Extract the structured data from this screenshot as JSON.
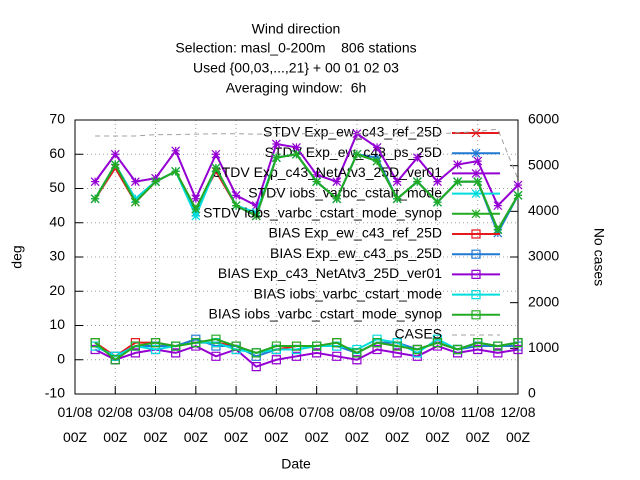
{
  "chart_data": {
    "type": "line",
    "title": "Wind direction",
    "subtitle": [
      "Selection: masl_0-200m    806 stations",
      "Used {00,03,...,21} + 00 01 02 03",
      "Averaging window:  6h"
    ],
    "xlabel": "Date",
    "ylabel": "deg",
    "y2label": "No cases",
    "xlim": [
      0,
      11
    ],
    "xticks": [
      {
        "value": 0,
        "label": "01/08 00Z"
      },
      {
        "value": 1,
        "label": "02/08 00Z"
      },
      {
        "value": 2,
        "label": "03/08 00Z"
      },
      {
        "value": 3,
        "label": "04/08 00Z"
      },
      {
        "value": 4,
        "label": "05/08 00Z"
      },
      {
        "value": 5,
        "label": "06/08 00Z"
      },
      {
        "value": 6,
        "label": "07/08 00Z"
      },
      {
        "value": 7,
        "label": "08/08 00Z"
      },
      {
        "value": 8,
        "label": "09/08 00Z"
      },
      {
        "value": 9,
        "label": "10/08 00Z"
      },
      {
        "value": 10,
        "label": "11/08 00Z"
      },
      {
        "value": 11,
        "label": "12/08 00Z"
      }
    ],
    "ylim": [
      -10,
      70
    ],
    "yticks": [
      -10,
      0,
      10,
      20,
      30,
      40,
      50,
      60,
      70
    ],
    "y2lim": [
      0,
      6000
    ],
    "y2ticks": [
      0,
      1000,
      2000,
      3000,
      4000,
      5000,
      6000
    ],
    "grid": true,
    "x": [
      0.5,
      1.0,
      1.5,
      2.0,
      2.5,
      3.0,
      3.5,
      4.0,
      4.5,
      5.0,
      5.5,
      6.0,
      6.5,
      7.0,
      7.5,
      8.0,
      8.5,
      9.0,
      9.5,
      10.0,
      10.5,
      11.0
    ],
    "series": [
      {
        "name": "STDV Exp_ew_c43_ref_25D",
        "color": "#e41a1c",
        "marker": "x",
        "values": [
          47,
          56,
          46,
          52,
          55,
          44,
          55,
          45,
          42,
          59,
          60,
          52,
          47,
          60,
          58,
          47,
          52,
          46,
          52,
          52,
          38,
          48
        ]
      },
      {
        "name": "STDV Exp_ew_c43_ps_25D",
        "color": "#1f78d4",
        "marker": "star",
        "values": [
          47,
          57,
          47,
          52,
          55,
          43,
          56,
          45,
          42,
          59,
          60,
          52,
          47,
          60,
          59,
          47,
          52,
          46,
          52,
          52,
          37,
          48
        ]
      },
      {
        "name": "STDV Exp_c43_NetAtv3_25D_ver01",
        "color": "#9400d3",
        "marker": "star",
        "values": [
          52,
          60,
          52,
          53,
          61,
          47,
          60,
          48,
          45,
          63,
          62,
          54,
          52,
          66,
          62,
          52,
          59,
          52,
          57,
          58,
          45,
          51
        ]
      },
      {
        "name": "STDV iobs_varbc_cstart_mode",
        "color": "#00dddd",
        "marker": "star",
        "values": [
          47,
          57,
          47,
          52,
          55,
          42,
          56,
          45,
          43,
          59,
          60,
          52,
          47,
          60,
          58,
          47,
          52,
          46,
          52,
          52,
          38,
          48
        ]
      },
      {
        "name": "STDV iobs_varbc_cstart_mode_synop",
        "color": "#22aa22",
        "marker": "star",
        "values": [
          47,
          57,
          46,
          52,
          55,
          44,
          56,
          45,
          42,
          59,
          60,
          52,
          47,
          60,
          58,
          47,
          52,
          46,
          52,
          52,
          38,
          48
        ]
      },
      {
        "name": "BIAS Exp_ew_c43_ref_25D",
        "color": "#e41a1c",
        "marker": "square",
        "values": [
          5,
          1,
          5,
          5,
          4,
          5,
          5,
          4,
          2,
          3,
          4,
          4,
          5,
          2,
          5,
          4,
          3,
          5,
          3,
          5,
          4,
          5
        ]
      },
      {
        "name": "BIAS Exp_ew_c43_ps_25D",
        "color": "#1f78d4",
        "marker": "square",
        "values": [
          4,
          1,
          4,
          4,
          4,
          6,
          4,
          4,
          1,
          3,
          3,
          4,
          4,
          2,
          5,
          5,
          3,
          5,
          3,
          4,
          4,
          4
        ]
      },
      {
        "name": "BIAS Exp_c43_NetAtv3_25D_ver01",
        "color": "#9400d3",
        "marker": "square",
        "values": [
          3,
          0,
          2,
          3,
          2,
          4,
          1,
          3,
          -2,
          0,
          1,
          2,
          1,
          0,
          3,
          2,
          1,
          4,
          2,
          3,
          2,
          3
        ]
      },
      {
        "name": "BIAS iobs_varbc_cstart_mode",
        "color": "#00dddd",
        "marker": "square",
        "values": [
          4,
          1,
          4,
          3,
          4,
          5,
          5,
          3,
          2,
          3,
          3,
          4,
          4,
          3,
          6,
          5,
          2,
          6,
          3,
          5,
          4,
          5
        ]
      },
      {
        "name": "BIAS iobs_varbc_cstart_mode_synop",
        "color": "#22aa22",
        "marker": "square",
        "values": [
          5,
          0,
          4,
          5,
          4,
          5,
          6,
          4,
          2,
          4,
          4,
          4,
          5,
          2,
          5,
          4,
          3,
          5,
          3,
          5,
          4,
          5
        ]
      },
      {
        "name": "CASES",
        "color": "#a0a0a0",
        "marker": "none",
        "dash": true,
        "axis": "y2",
        "values": [
          5650,
          5650,
          5650,
          5680,
          5680,
          5690,
          5700,
          5700,
          5690,
          5700,
          5700,
          5700,
          5710,
          5700,
          5690,
          5700,
          5720,
          5700,
          5720,
          5750,
          5800,
          4700
        ]
      }
    ]
  }
}
